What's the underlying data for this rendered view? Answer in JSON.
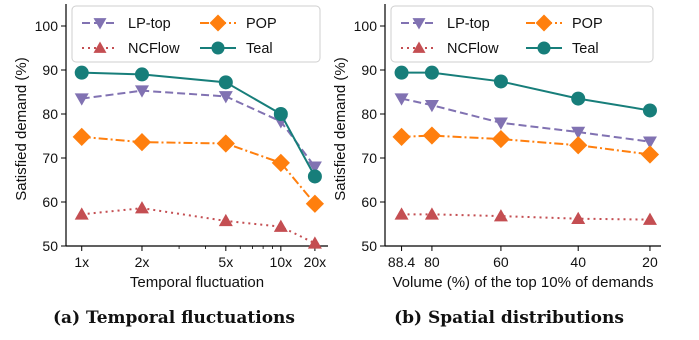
{
  "chart_data": [
    {
      "type": "line",
      "ylabel": "Satisfied demand (%)",
      "xlabel": "Temporal fluctuation",
      "caption": "(a) Temporal fluctuations",
      "x_scale": "log",
      "x": [
        1,
        2,
        5,
        10,
        20
      ],
      "x_tick_labels": [
        "1x",
        "2x",
        "5x",
        "10x",
        "20x"
      ],
      "ylim": [
        50,
        105
      ],
      "y_ticks": [
        50,
        60,
        70,
        80,
        90,
        100
      ],
      "legend_position": "top",
      "series": [
        {
          "name": "LP-top",
          "color": "#8172b2",
          "marker": "triangle-down",
          "line_style": "dashed",
          "values": [
            83.5,
            85.3,
            84.0,
            78.3,
            68.0
          ]
        },
        {
          "name": "NCFlow",
          "color": "#c44e52",
          "marker": "triangle-up",
          "line_style": "dotted",
          "values": [
            57.2,
            58.6,
            55.7,
            54.4,
            50.6
          ]
        },
        {
          "name": "POP",
          "color": "#ff7f0e",
          "marker": "diamond",
          "line_style": "dashdot",
          "values": [
            74.8,
            73.6,
            73.3,
            68.9,
            59.6
          ]
        },
        {
          "name": "Teal",
          "color": "#177e7a",
          "marker": "circle",
          "line_style": "solid",
          "values": [
            89.4,
            89.0,
            87.2,
            80.0,
            65.8
          ]
        }
      ]
    },
    {
      "type": "line",
      "ylabel": "Satisfied demand (%)",
      "xlabel": "Volume (%) of the top 10% of demands",
      "caption": "(b) Spatial distributions",
      "x": [
        88.4,
        80,
        60,
        40,
        20
      ],
      "x_tick_labels": [
        "88.4",
        "80",
        "60",
        "40",
        "20"
      ],
      "x_reversed": true,
      "ylim": [
        50,
        105
      ],
      "y_ticks": [
        50,
        60,
        70,
        80,
        90,
        100
      ],
      "legend_position": "top",
      "series": [
        {
          "name": "LP-top",
          "color": "#8172b2",
          "marker": "triangle-down",
          "line_style": "dashed",
          "values": [
            83.5,
            82.0,
            78.0,
            75.9,
            73.7
          ]
        },
        {
          "name": "NCFlow",
          "color": "#c44e52",
          "marker": "triangle-up",
          "line_style": "dotted",
          "values": [
            57.2,
            57.2,
            56.8,
            56.2,
            56.0
          ]
        },
        {
          "name": "POP",
          "color": "#ff7f0e",
          "marker": "diamond",
          "line_style": "dashdot",
          "values": [
            74.8,
            75.1,
            74.3,
            72.9,
            70.8
          ]
        },
        {
          "name": "Teal",
          "color": "#177e7a",
          "marker": "circle",
          "line_style": "solid",
          "values": [
            89.4,
            89.4,
            87.4,
            83.5,
            80.8
          ]
        }
      ]
    }
  ]
}
